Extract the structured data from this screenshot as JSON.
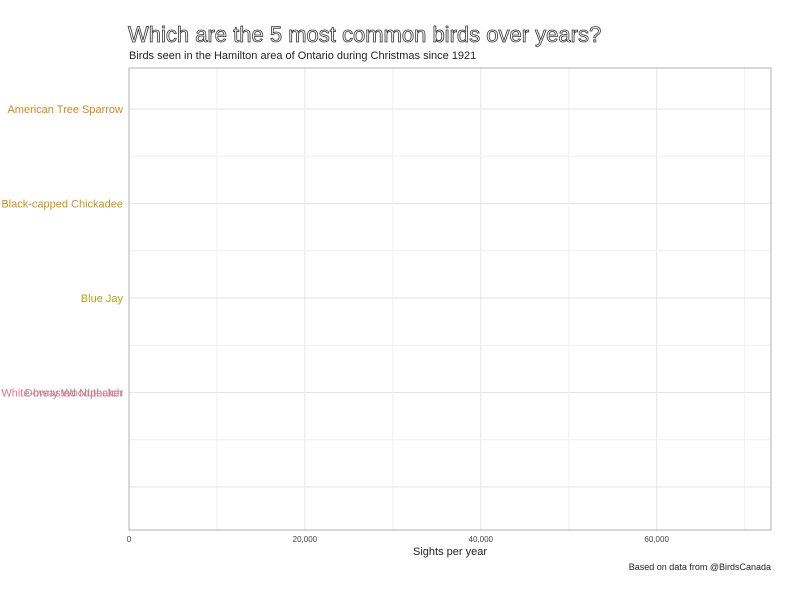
{
  "chart_data": {
    "type": "bar",
    "title": "Which are the 5 most common birds over years?",
    "subtitle": "Birds seen in the Hamilton area of Ontario during Christmas since 1921",
    "caption": "Based on data from @BirdsCanada",
    "xlabel": "Sights per year",
    "ylabel": "",
    "xlim": [
      0,
      73000
    ],
    "x_ticks": [
      0,
      20000,
      40000,
      60000
    ],
    "x_tick_labels": [
      "0",
      "20,000",
      "40,000",
      "60,000"
    ],
    "categories": [
      {
        "name": "American Tree Sparrow",
        "rank": 1,
        "color": "#d4881e"
      },
      {
        "name": "Black-capped Chickadee",
        "rank": 2,
        "color": "#c8951a"
      },
      {
        "name": "Blue Jay",
        "rank": 3,
        "color": "#b8a21a"
      },
      {
        "name": "Downy Woodpecker",
        "rank": 4,
        "color": "#9a9a9a"
      },
      {
        "name": "White-breasted Nuthatch",
        "rank": 4,
        "color": "#e8708a"
      }
    ],
    "values": [
      0,
      0,
      0,
      0,
      0
    ],
    "grid": true,
    "legend": "none"
  }
}
